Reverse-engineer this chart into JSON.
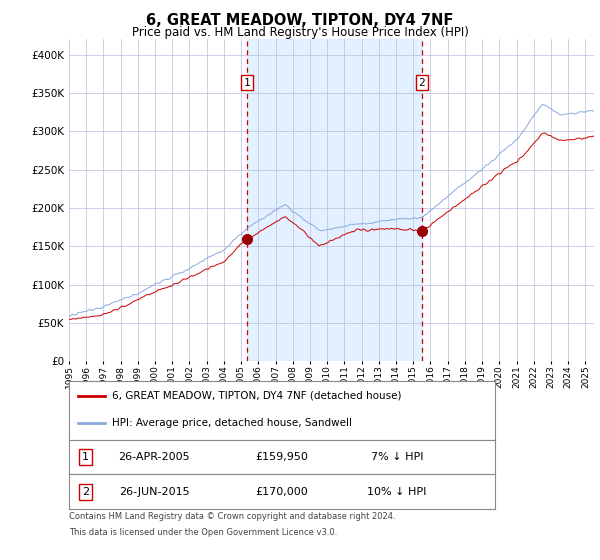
{
  "title": "6, GREAT MEADOW, TIPTON, DY4 7NF",
  "subtitle": "Price paid vs. HM Land Registry's House Price Index (HPI)",
  "legend_red": "6, GREAT MEADOW, TIPTON, DY4 7NF (detached house)",
  "legend_blue": "HPI: Average price, detached house, Sandwell",
  "transaction1": {
    "date": "26-APR-2005",
    "price": 159950,
    "hpi_diff": "7% ↓ HPI",
    "year": 2005.33
  },
  "transaction2": {
    "date": "26-JUN-2015",
    "price": 170000,
    "hpi_diff": "10% ↓ HPI",
    "year": 2015.5
  },
  "footnote1": "Contains HM Land Registry data © Crown copyright and database right 2024.",
  "footnote2": "This data is licensed under the Open Government Licence v3.0.",
  "ylim": [
    0,
    420000
  ],
  "yticks": [
    0,
    50000,
    100000,
    150000,
    200000,
    250000,
    300000,
    350000,
    400000
  ],
  "xlim_start": 1995.0,
  "xlim_end": 2025.5,
  "background_color": "#ffffff",
  "shading_color": "#ddeeff",
  "grid_color": "#bbbbdd",
  "red_color": "#cc0000",
  "blue_color": "#88aadd",
  "marker_color": "#990000",
  "vline_color": "#cc0000"
}
